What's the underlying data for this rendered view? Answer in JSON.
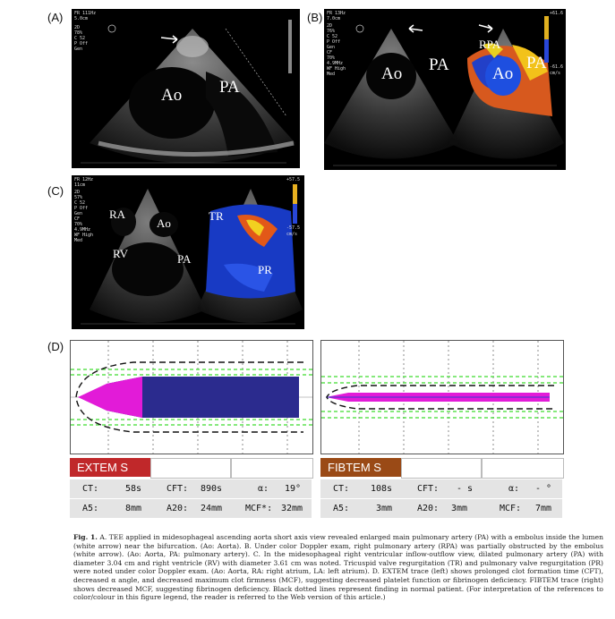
{
  "panels": {
    "a": {
      "label": "(A)",
      "ao": "Ao",
      "pa": "PA",
      "header": "FR 111Hz\n5.0cm",
      "params": "2D\n78%\nC 52\nP Off\nGen"
    },
    "b": {
      "label": "(B)",
      "ao_left": "Ao",
      "pa_left": "PA",
      "rpa": "RPA",
      "ao_right": "Ao",
      "pa_right": "PA",
      "header": "FR 13Hz\n7.0cm",
      "params": "2D\n76%\nC 52\nP Off\nGen\nCF\n70%\n4.9MHz\nWF High\nMed",
      "scale_top": "+61.6",
      "scale_bottom": "-61.6",
      "scale_unit": "cm/s"
    },
    "c": {
      "label": "(C)",
      "ra": "RA",
      "ao": "Ao",
      "rv": "RV",
      "pa": "PA",
      "tr": "TR",
      "pr": "PR",
      "header": "FR 12Hz\n11cm",
      "params": "2D\n57%\nC 52\nP Off\nGen\nCF\n70%\n4.9MHz\nWF High\nMed",
      "scale_top": "+57.5",
      "scale_bottom": "-57.5",
      "scale_unit": "cm/s"
    },
    "d": {
      "label": "(D)"
    }
  },
  "extem": {
    "name": "EXTEM S",
    "header_color": "#c0282a",
    "trace_color": "#2b2b8e",
    "tip_color": "#e21bd8",
    "row1": [
      {
        "k": "CT:",
        "v": "58s"
      },
      {
        "k": "CFT:",
        "v": "890s"
      },
      {
        "k": "α:",
        "v": "19°"
      }
    ],
    "row2": [
      {
        "k": "A5:",
        "v": "8mm"
      },
      {
        "k": "A20:",
        "v": "24mm"
      },
      {
        "k": "MCF*:",
        "v": "32mm"
      }
    ]
  },
  "fibtem": {
    "name": "FIBTEM S",
    "header_color": "#9a4a16",
    "trace_color": "#e21bd8",
    "row1": [
      {
        "k": "CT:",
        "v": "108s"
      },
      {
        "k": "CFT:",
        "v": "- s"
      },
      {
        "k": "α:",
        "v": "- °"
      }
    ],
    "row2": [
      {
        "k": "A5:",
        "v": "3mm"
      },
      {
        "k": "A20:",
        "v": "3mm"
      },
      {
        "k": "MCF:",
        "v": "7mm"
      }
    ]
  },
  "caption": {
    "lead": "Fig. 1.",
    "text": " A. TEE applied in midesophageal ascending aorta short axis view revealed enlarged main pulmonary artery (PA) with a embolus inside the lumen (white arrow) near the bifurcation. (Ao: Aorta). B. Under color Doppler exam, right pulmonary artery (RPA) was partially obstructed by the embolus (white arrow). (Ao: Aorta, PA: pulmonary artery). C. In the midesophageal right ventricular inflow-outflow view, dilated pulmonary artery (PA) with diameter 3.04 cm and right ventricle (RV) with diameter 3.61 cm was noted. Tricuspid valve regurgitation (TR) and pulmonary valve regurgitation (PR) were noted under color Doppler exam. (Ao: Aorta, RA: right atrium, LA: left atrium). D. EXTEM trace (left) shows prolonged clot formation time (CFT), decreased α angle, and decreased maximum clot firmness (MCF), suggesting decreased platelet function or fibrinogen deficiency. FIBTEM trace (right) shows decreased MCF, suggesting fibrinogen deficiency. Black dotted lines represent finding in normal patient. (For interpretation of the references to color/colour in this figure legend, the reader is referred to the Web version of this article.)"
  }
}
